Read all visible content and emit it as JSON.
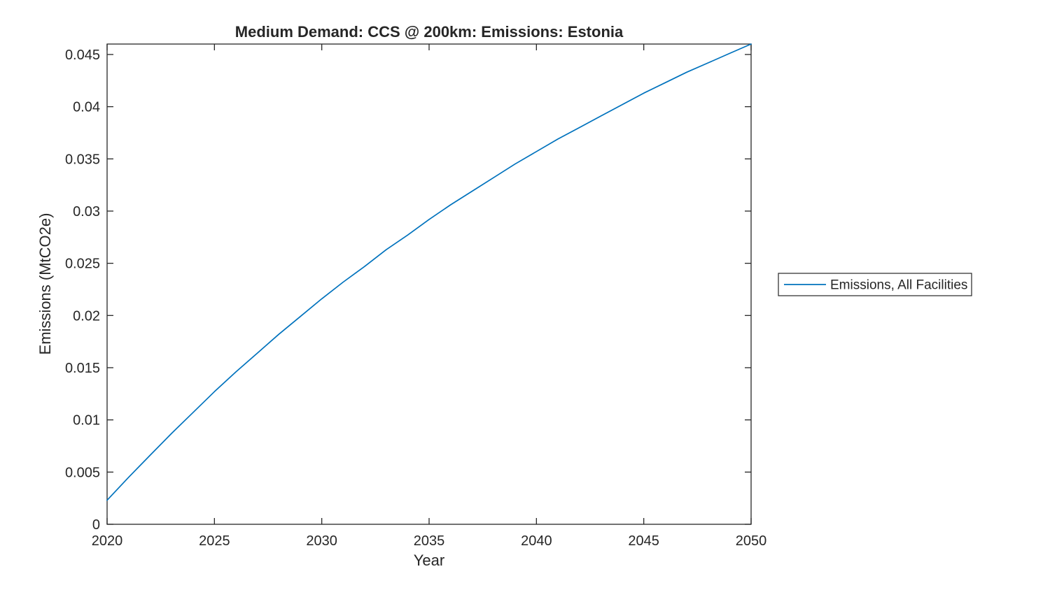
{
  "chart_data": {
    "type": "line",
    "title": "Medium Demand: CCS @ 200km: Emissions: Estonia",
    "xlabel": "Year",
    "ylabel": "Emissions (MtCO2e)",
    "xlim": [
      2020,
      2050
    ],
    "ylim": [
      0,
      0.046
    ],
    "xticks": [
      2020,
      2025,
      2030,
      2035,
      2040,
      2045,
      2050
    ],
    "xtick_labels": [
      "2020",
      "2025",
      "2030",
      "2035",
      "2040",
      "2045",
      "2050"
    ],
    "yticks": [
      0,
      0.005,
      0.01,
      0.015,
      0.02,
      0.025,
      0.03,
      0.035,
      0.04,
      0.045
    ],
    "ytick_labels": [
      "0",
      "0.005",
      "0.01",
      "0.015",
      "0.02",
      "0.025",
      "0.03",
      "0.035",
      "0.04",
      "0.045"
    ],
    "grid": false,
    "legend": {
      "position": "outside-right",
      "entries": [
        "Emissions, All Facilities"
      ]
    },
    "series": [
      {
        "name": "Emissions, All Facilities",
        "color": "#0072BD",
        "x": [
          2020,
          2021,
          2022,
          2023,
          2024,
          2025,
          2026,
          2027,
          2028,
          2029,
          2030,
          2031,
          2032,
          2033,
          2034,
          2035,
          2036,
          2037,
          2038,
          2039,
          2040,
          2041,
          2042,
          2043,
          2044,
          2045,
          2046,
          2047,
          2048,
          2049,
          2050
        ],
        "values": [
          0.0023,
          0.0045,
          0.0066,
          0.0087,
          0.0107,
          0.0127,
          0.0146,
          0.0164,
          0.0182,
          0.0199,
          0.0216,
          0.0232,
          0.0247,
          0.0263,
          0.0277,
          0.0292,
          0.0306,
          0.0319,
          0.0332,
          0.0345,
          0.0357,
          0.0369,
          0.038,
          0.0391,
          0.0402,
          0.0413,
          0.0423,
          0.0433,
          0.0442,
          0.0451,
          0.046
        ]
      }
    ],
    "colors": {
      "line": "#0072BD",
      "axis": "#262626",
      "text": "#262626",
      "background": "#ffffff"
    }
  }
}
